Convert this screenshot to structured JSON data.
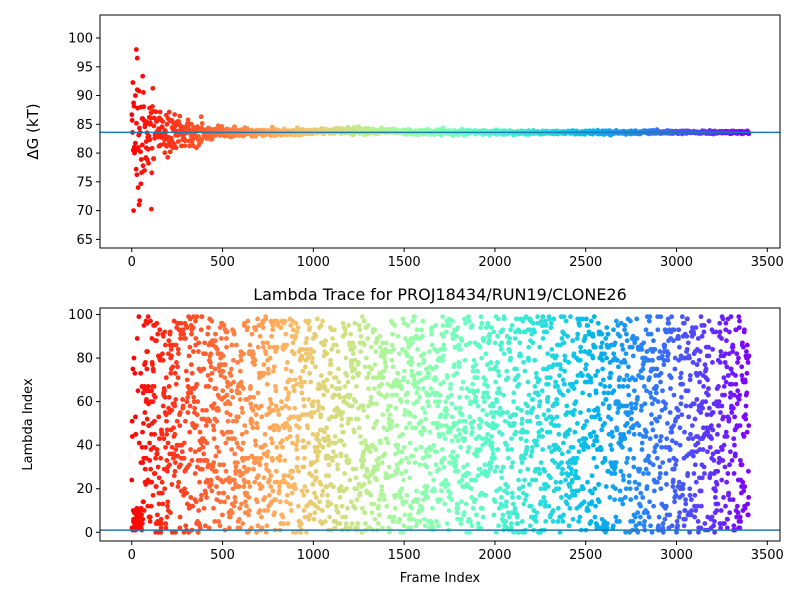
{
  "chart_data": [
    {
      "type": "scatter",
      "title": "",
      "xlabel": "",
      "ylabel": "ΔG (kT)",
      "xlim": [
        -175,
        3570
      ],
      "ylim": [
        63.5,
        104
      ],
      "xticks": [
        0,
        500,
        1000,
        1500,
        2000,
        2500,
        3000,
        3500
      ],
      "yticks": [
        65,
        70,
        75,
        80,
        85,
        90,
        95,
        100
      ],
      "hline": 83.6,
      "hline_color": "#1f77b4",
      "colormap": "rainbow reversed (red at start, violet at end)",
      "n_frames": 3400,
      "trend": "large spread early (70-98 kT), converging to about 83.6 kT by ~600 frames",
      "series": [
        {
          "x": [
            10,
            20,
            25,
            30,
            15,
            35,
            40,
            50,
            60,
            80,
            100,
            120,
            150,
            200,
            250,
            300,
            400,
            600,
            1000,
            1500,
            2000,
            2500,
            3000,
            3400
          ],
          "values": [
            70,
            90,
            98,
            96.5,
            80,
            74,
            71,
            88,
            86,
            82,
            85,
            79,
            84,
            86,
            85,
            83,
            84.5,
            83.5,
            83.8,
            83.6,
            83.7,
            83.6,
            83.6,
            83.6
          ]
        }
      ]
    },
    {
      "type": "scatter",
      "title": "Lambda Trace for PROJ18434/RUN19/CLONE26",
      "xlabel": "Frame Index",
      "ylabel": "Lambda Index",
      "xlim": [
        -175,
        3570
      ],
      "ylim": [
        -4,
        103
      ],
      "xticks": [
        0,
        500,
        1000,
        1500,
        2000,
        2500,
        3000,
        3500
      ],
      "yticks": [
        0,
        20,
        40,
        60,
        80,
        100
      ],
      "hline": 1,
      "hline_color": "#1f77b4",
      "colormap": "rainbow reversed (red at start, violet at end)",
      "n_frames": 3400,
      "value_range": [
        0,
        99
      ]
    }
  ],
  "colors": {
    "axis_line": "#1f77b4",
    "spine": "#000000"
  }
}
